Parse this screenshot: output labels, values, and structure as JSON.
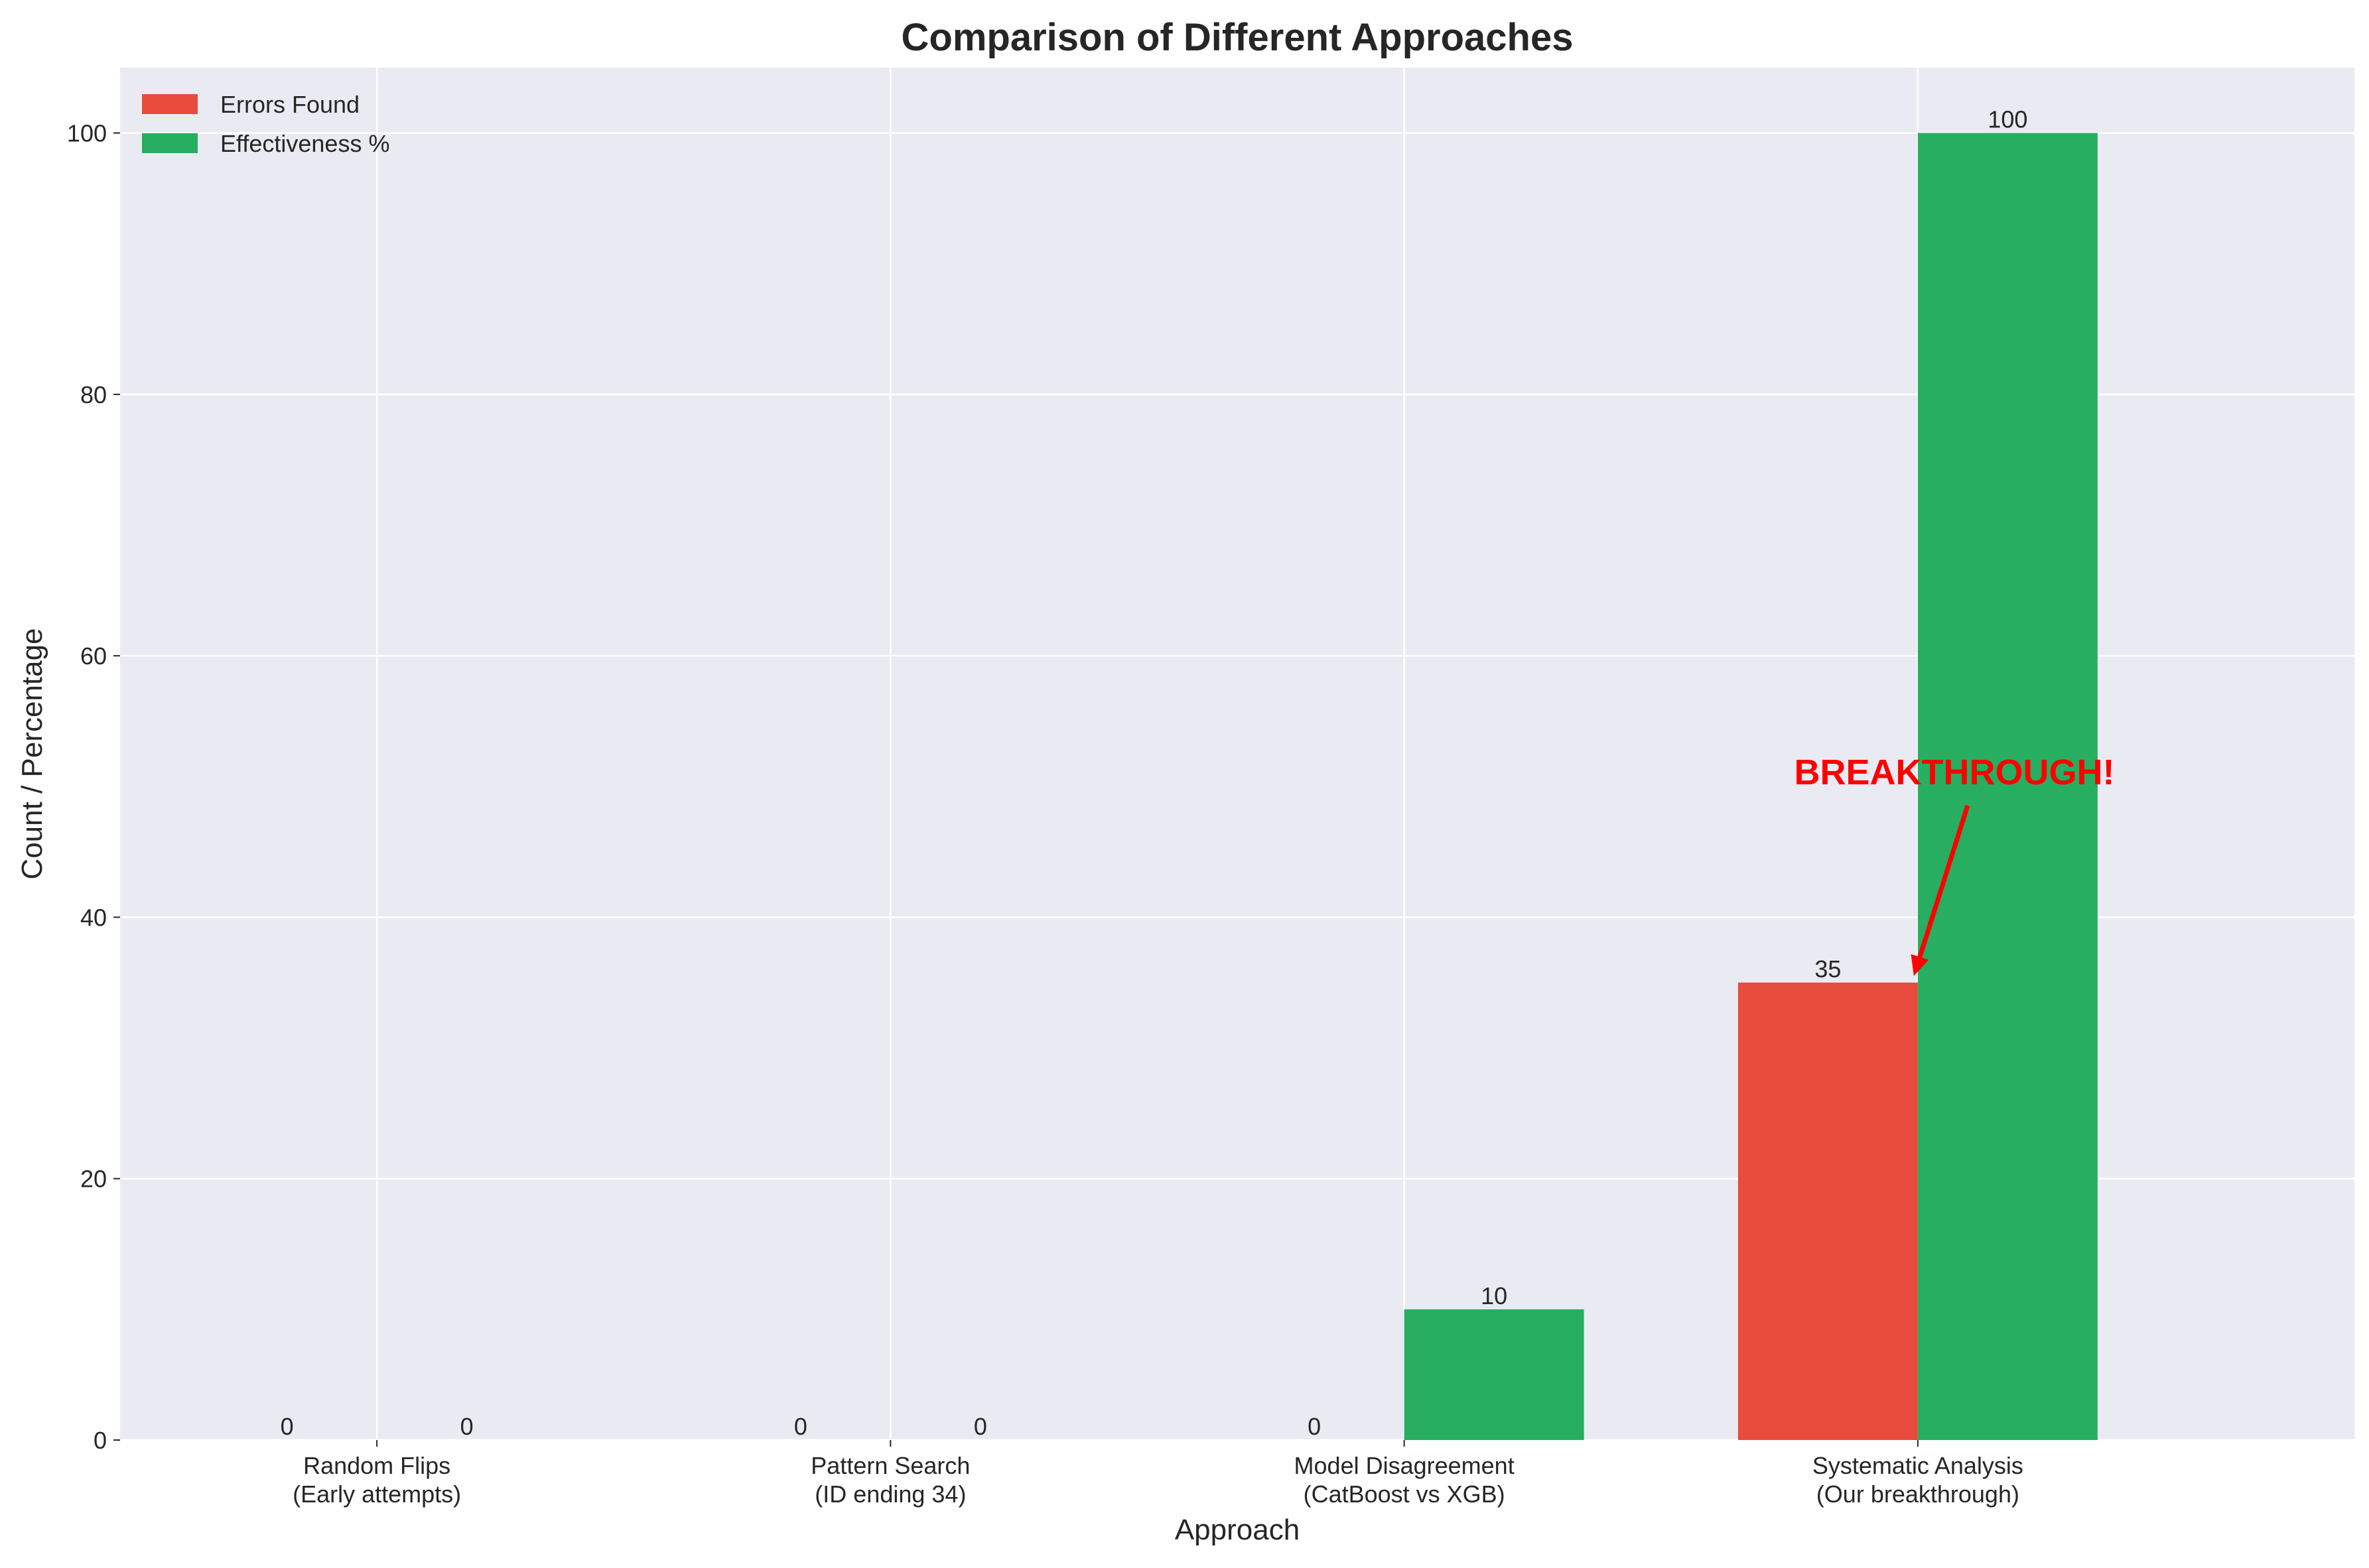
{
  "chart_data": {
    "type": "bar",
    "title": "Comparison of Different Approaches",
    "xlabel": "Approach",
    "ylabel": "Count / Percentage",
    "categories": [
      [
        "Random Flips",
        "(Early attempts)"
      ],
      [
        "Pattern Search",
        "(ID ending 34)"
      ],
      [
        "Model Disagreement",
        "(CatBoost vs XGB)"
      ],
      [
        "Systematic Analysis",
        "(Our breakthrough)"
      ]
    ],
    "series": [
      {
        "name": "Errors Found",
        "values": [
          0,
          0,
          0,
          35
        ],
        "color": "#e74c3c"
      },
      {
        "name": "Effectiveness %",
        "values": [
          0,
          0,
          10,
          100
        ],
        "color": "#27ae60"
      }
    ],
    "ylim": [
      0,
      105
    ],
    "yticks": [
      0,
      20,
      40,
      60,
      80,
      100
    ],
    "grid": true,
    "legend_position": "top-left",
    "background_color": "#eaeaf2",
    "annotation": {
      "text": "BREAKTHROUGH!",
      "color": "#ff0000",
      "points_to": {
        "category_index": 3,
        "series_index": 0,
        "value": 35
      }
    }
  }
}
